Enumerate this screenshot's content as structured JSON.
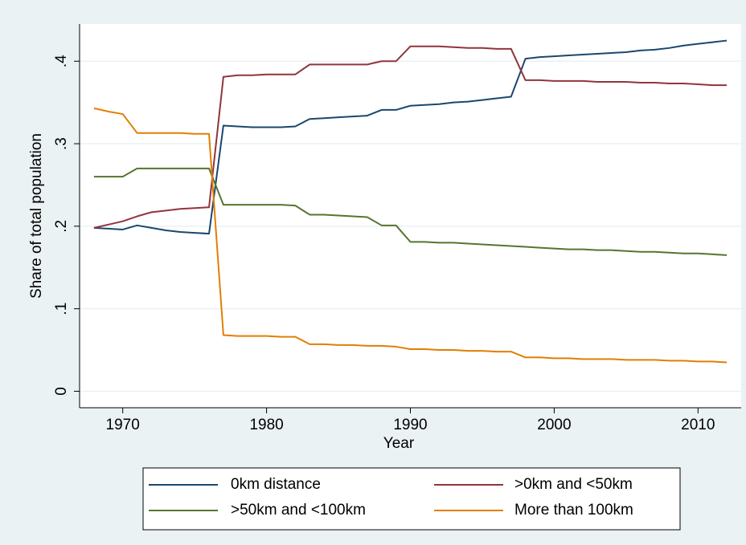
{
  "chart_data": {
    "type": "line",
    "x_label": "Year",
    "y_label": "Share of total population",
    "x": [
      1968,
      1969,
      1970,
      1971,
      1972,
      1973,
      1974,
      1975,
      1976,
      1977,
      1978,
      1979,
      1980,
      1981,
      1982,
      1983,
      1984,
      1985,
      1986,
      1987,
      1988,
      1989,
      1990,
      1991,
      1992,
      1993,
      1994,
      1995,
      1996,
      1997,
      1998,
      1999,
      2000,
      2001,
      2002,
      2003,
      2004,
      2005,
      2006,
      2007,
      2008,
      2009,
      2010,
      2011,
      2012
    ],
    "series": [
      {
        "name": "0km distance",
        "color": "#1a476f",
        "values": [
          0.198,
          0.197,
          0.196,
          0.201,
          0.198,
          0.195,
          0.193,
          0.192,
          0.191,
          0.322,
          0.321,
          0.32,
          0.32,
          0.32,
          0.321,
          0.33,
          0.331,
          0.332,
          0.333,
          0.334,
          0.341,
          0.341,
          0.346,
          0.347,
          0.348,
          0.35,
          0.351,
          0.353,
          0.355,
          0.357,
          0.403,
          0.405,
          0.406,
          0.407,
          0.408,
          0.409,
          0.41,
          0.411,
          0.413,
          0.414,
          0.416,
          0.419,
          0.421,
          0.423,
          0.425
        ]
      },
      {
        "name": ">0km and <50km",
        "color": "#90353b",
        "values": [
          0.198,
          0.202,
          0.206,
          0.212,
          0.217,
          0.219,
          0.221,
          0.222,
          0.223,
          0.381,
          0.383,
          0.383,
          0.384,
          0.384,
          0.384,
          0.396,
          0.396,
          0.396,
          0.396,
          0.396,
          0.4,
          0.4,
          0.418,
          0.418,
          0.418,
          0.417,
          0.416,
          0.416,
          0.415,
          0.415,
          0.377,
          0.377,
          0.376,
          0.376,
          0.376,
          0.375,
          0.375,
          0.375,
          0.374,
          0.374,
          0.373,
          0.373,
          0.372,
          0.371,
          0.371
        ]
      },
      {
        "name": ">50km and <100km",
        "color": "#55752f",
        "values": [
          0.26,
          0.26,
          0.26,
          0.27,
          0.27,
          0.27,
          0.27,
          0.27,
          0.27,
          0.226,
          0.226,
          0.226,
          0.226,
          0.226,
          0.225,
          0.214,
          0.214,
          0.213,
          0.212,
          0.211,
          0.201,
          0.201,
          0.181,
          0.181,
          0.18,
          0.18,
          0.179,
          0.178,
          0.177,
          0.176,
          0.175,
          0.174,
          0.173,
          0.172,
          0.172,
          0.171,
          0.171,
          0.17,
          0.169,
          0.169,
          0.168,
          0.167,
          0.167,
          0.166,
          0.165
        ]
      },
      {
        "name": "More than 100km",
        "color": "#e37e00",
        "values": [
          0.343,
          0.339,
          0.336,
          0.313,
          0.313,
          0.313,
          0.313,
          0.312,
          0.312,
          0.068,
          0.067,
          0.067,
          0.067,
          0.066,
          0.066,
          0.057,
          0.057,
          0.056,
          0.056,
          0.055,
          0.055,
          0.054,
          0.051,
          0.051,
          0.05,
          0.05,
          0.049,
          0.049,
          0.048,
          0.048,
          0.041,
          0.041,
          0.04,
          0.04,
          0.039,
          0.039,
          0.039,
          0.038,
          0.038,
          0.038,
          0.037,
          0.037,
          0.036,
          0.036,
          0.035
        ]
      }
    ],
    "xlim": [
      1967,
      2013
    ],
    "xticks": [
      1970,
      1980,
      1990,
      2000,
      2010
    ],
    "ylim": [
      -0.02,
      0.445
    ],
    "yticks": [
      0,
      {
        "value": 0.1,
        "label": ".1"
      },
      {
        "value": 0.2,
        "label": ".2"
      },
      {
        "value": 0.3,
        "label": ".3"
      },
      {
        "value": 0.4,
        "label": ".4"
      }
    ],
    "grid": true,
    "legend_position": "bottom"
  }
}
